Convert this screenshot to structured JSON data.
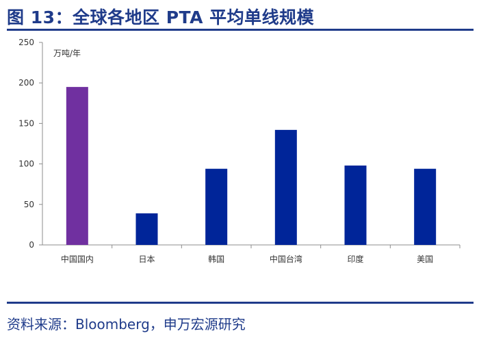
{
  "header": {
    "title": "图 13：全球各地区 PTA 平均单线规模"
  },
  "footer": {
    "source": "资料来源：Bloomberg，申万宏源研究"
  },
  "chart_data": {
    "type": "bar",
    "title": "",
    "xlabel": "",
    "ylabel": "万吨/年",
    "categories": [
      "中国国内",
      "日本",
      "韩国",
      "中国台湾",
      "印度",
      "美国"
    ],
    "values": [
      195,
      39,
      94,
      142,
      98,
      94
    ],
    "bar_colors": [
      "#7030a0",
      "#002599",
      "#002599",
      "#002599",
      "#002599",
      "#002599"
    ],
    "yticks": [
      0,
      50,
      100,
      150,
      200,
      250
    ],
    "ylim": [
      0,
      250
    ],
    "grid": false,
    "legend": false
  },
  "colors": {
    "accent": "#1f3b8a",
    "highlight_bar": "#7030a0",
    "bar": "#002599"
  }
}
